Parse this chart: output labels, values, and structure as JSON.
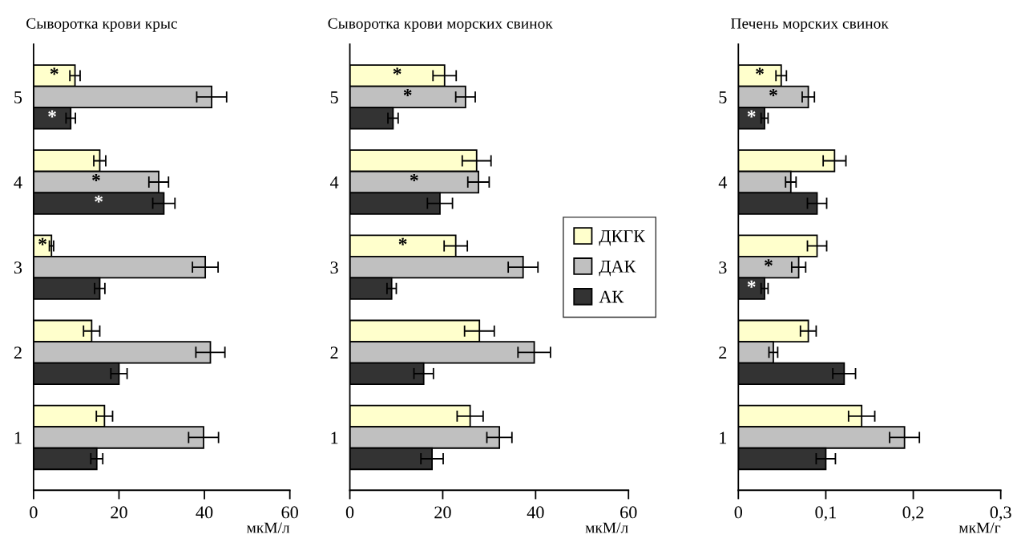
{
  "chart_data": [
    {
      "type": "bar",
      "orientation": "horizontal",
      "title": "Сыворотка крови крыс",
      "xlabel": "мкМ/л",
      "categories": [
        "5",
        "4",
        "3",
        "2",
        "1"
      ],
      "xlim": [
        0,
        60
      ],
      "xticks": [
        0,
        20,
        40,
        60
      ],
      "grid": false,
      "legend": false,
      "series": [
        {
          "color": "#ffffcc",
          "values": [
            9.7,
            15.5,
            4.2,
            13.6,
            16.6
          ],
          "errors": [
            1.2,
            1.4,
            0.5,
            1.9,
            1.9
          ],
          "value_labels": [
            "*",
            null,
            "*",
            null,
            null
          ]
        },
        {
          "color": "#c0c0c0",
          "values": [
            41.7,
            29.3,
            40.2,
            41.4,
            39.8
          ],
          "errors": [
            3.5,
            2.3,
            3,
            3.4,
            3.5
          ],
          "value_labels": [
            null,
            "*",
            null,
            null,
            null
          ]
        },
        {
          "color": "#333333",
          "values": [
            8.7,
            30.5,
            15.5,
            20,
            14.8
          ],
          "errors": [
            1.1,
            2.6,
            1.2,
            1.9,
            1.4
          ],
          "value_labels": [
            "*",
            "*",
            null,
            null,
            null
          ]
        }
      ]
    },
    {
      "type": "bar",
      "orientation": "horizontal",
      "title": "Сыворотка крови морских свинок",
      "xlabel": "мкМ/л",
      "categories": [
        "5",
        "4",
        "3",
        "2",
        "1"
      ],
      "xlim": [
        0,
        60
      ],
      "xticks": [
        0,
        20,
        40,
        60
      ],
      "grid": false,
      "legend": "right",
      "series": [
        {
          "name": "ДКГК",
          "color": "#ffffcc",
          "values": [
            20.4,
            27.3,
            22.8,
            27.9,
            25.9
          ],
          "errors": [
            2.5,
            3.1,
            2.5,
            3.2,
            2.8
          ],
          "value_labels": [
            "*",
            null,
            "*",
            null,
            null
          ]
        },
        {
          "name": "ДАК",
          "color": "#c0c0c0",
          "values": [
            24.9,
            27.7,
            37.3,
            39.7,
            32.2
          ],
          "errors": [
            2.1,
            2.3,
            3.2,
            3.5,
            2.7
          ],
          "value_labels": [
            "*",
            "*",
            null,
            null,
            null
          ]
        },
        {
          "name": "АК",
          "color": "#333333",
          "values": [
            9.3,
            19.4,
            9.0,
            15.9,
            17.7
          ],
          "errors": [
            1.1,
            2.7,
            1.0,
            2.1,
            2.4
          ],
          "value_labels": [
            null,
            null,
            null,
            null,
            null
          ]
        }
      ]
    },
    {
      "type": "bar",
      "orientation": "horizontal",
      "title": "Печень морских свинок",
      "xlabel": "мкМ/г",
      "categories": [
        "5",
        "4",
        "3",
        "2",
        "1"
      ],
      "xlim": [
        0,
        0.3
      ],
      "xticks": [
        0,
        {
          "value": 0.1,
          "label": "0,1"
        },
        {
          "value": 0.2,
          "label": "0,2"
        },
        {
          "value": 0.3,
          "label": "0,3"
        }
      ],
      "grid": false,
      "legend": false,
      "series": [
        {
          "color": "#ffffcc",
          "values": [
            0.049,
            0.11,
            0.09,
            0.08,
            0.141
          ],
          "errors": [
            0.006,
            0.013,
            0.011,
            0.009,
            0.015
          ],
          "value_labels": [
            "*",
            null,
            null,
            null,
            null
          ]
        },
        {
          "color": "#c0c0c0",
          "values": [
            0.08,
            0.06,
            0.069,
            0.04,
            0.19
          ],
          "errors": [
            0.007,
            0.006,
            0.008,
            0.005,
            0.017
          ],
          "value_labels": [
            "*",
            null,
            "*",
            null,
            null
          ]
        },
        {
          "color": "#333333",
          "values": [
            0.03,
            0.09,
            0.03,
            0.121,
            0.1
          ],
          "errors": [
            0.004,
            0.011,
            0.004,
            0.013,
            0.011
          ],
          "value_labels": [
            "*",
            null,
            "*",
            null,
            null
          ]
        }
      ]
    }
  ]
}
